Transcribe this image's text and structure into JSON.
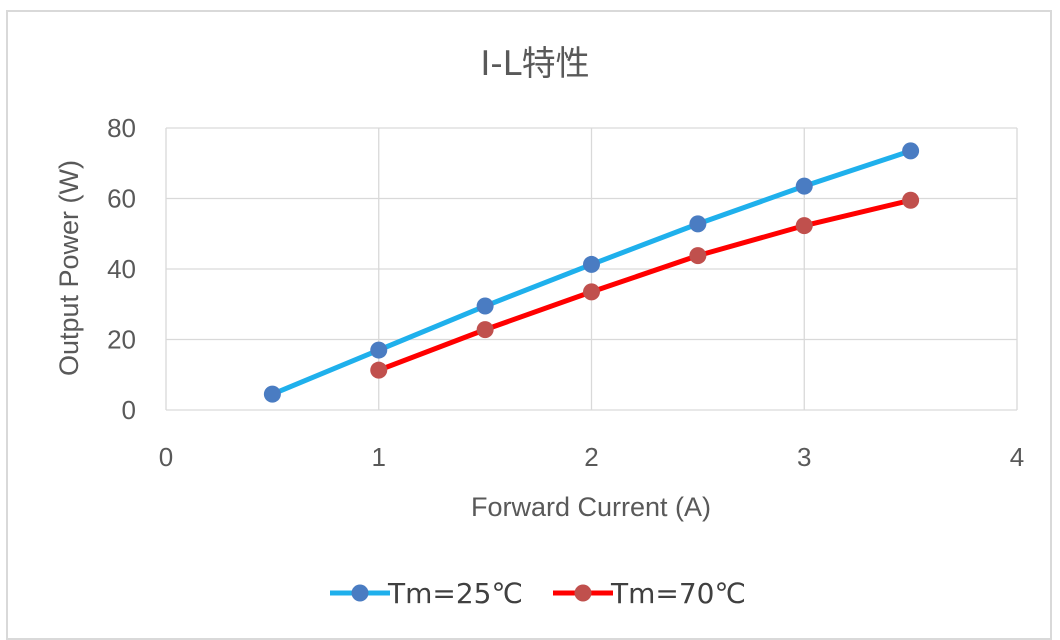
{
  "chart_data": {
    "type": "line",
    "title": "I-L特性",
    "xlabel": "Forward Current (A)",
    "ylabel": "Output Power (W)",
    "xlim": [
      0,
      4
    ],
    "ylim": [
      0,
      80
    ],
    "xticks": [
      0,
      1,
      2,
      3,
      4
    ],
    "yticks": [
      0,
      20,
      40,
      60,
      80
    ],
    "grid": true,
    "legend_position": "bottom",
    "series": [
      {
        "name": "Tm=25℃",
        "line_color": "#1fb0ec",
        "marker_color": "#4a7cc2",
        "x": [
          0.5,
          1,
          1.5,
          2,
          2.5,
          3,
          3.5
        ],
        "y": [
          4.5,
          17,
          29.5,
          41.3,
          52.8,
          63.5,
          73.5
        ]
      },
      {
        "name": "Tm=70℃",
        "line_color": "#ff0000",
        "marker_color": "#c0504d",
        "x": [
          1,
          1.5,
          2,
          2.5,
          3,
          3.5
        ],
        "y": [
          11.3,
          22.8,
          33.5,
          43.8,
          52.3,
          59.5
        ]
      }
    ]
  }
}
